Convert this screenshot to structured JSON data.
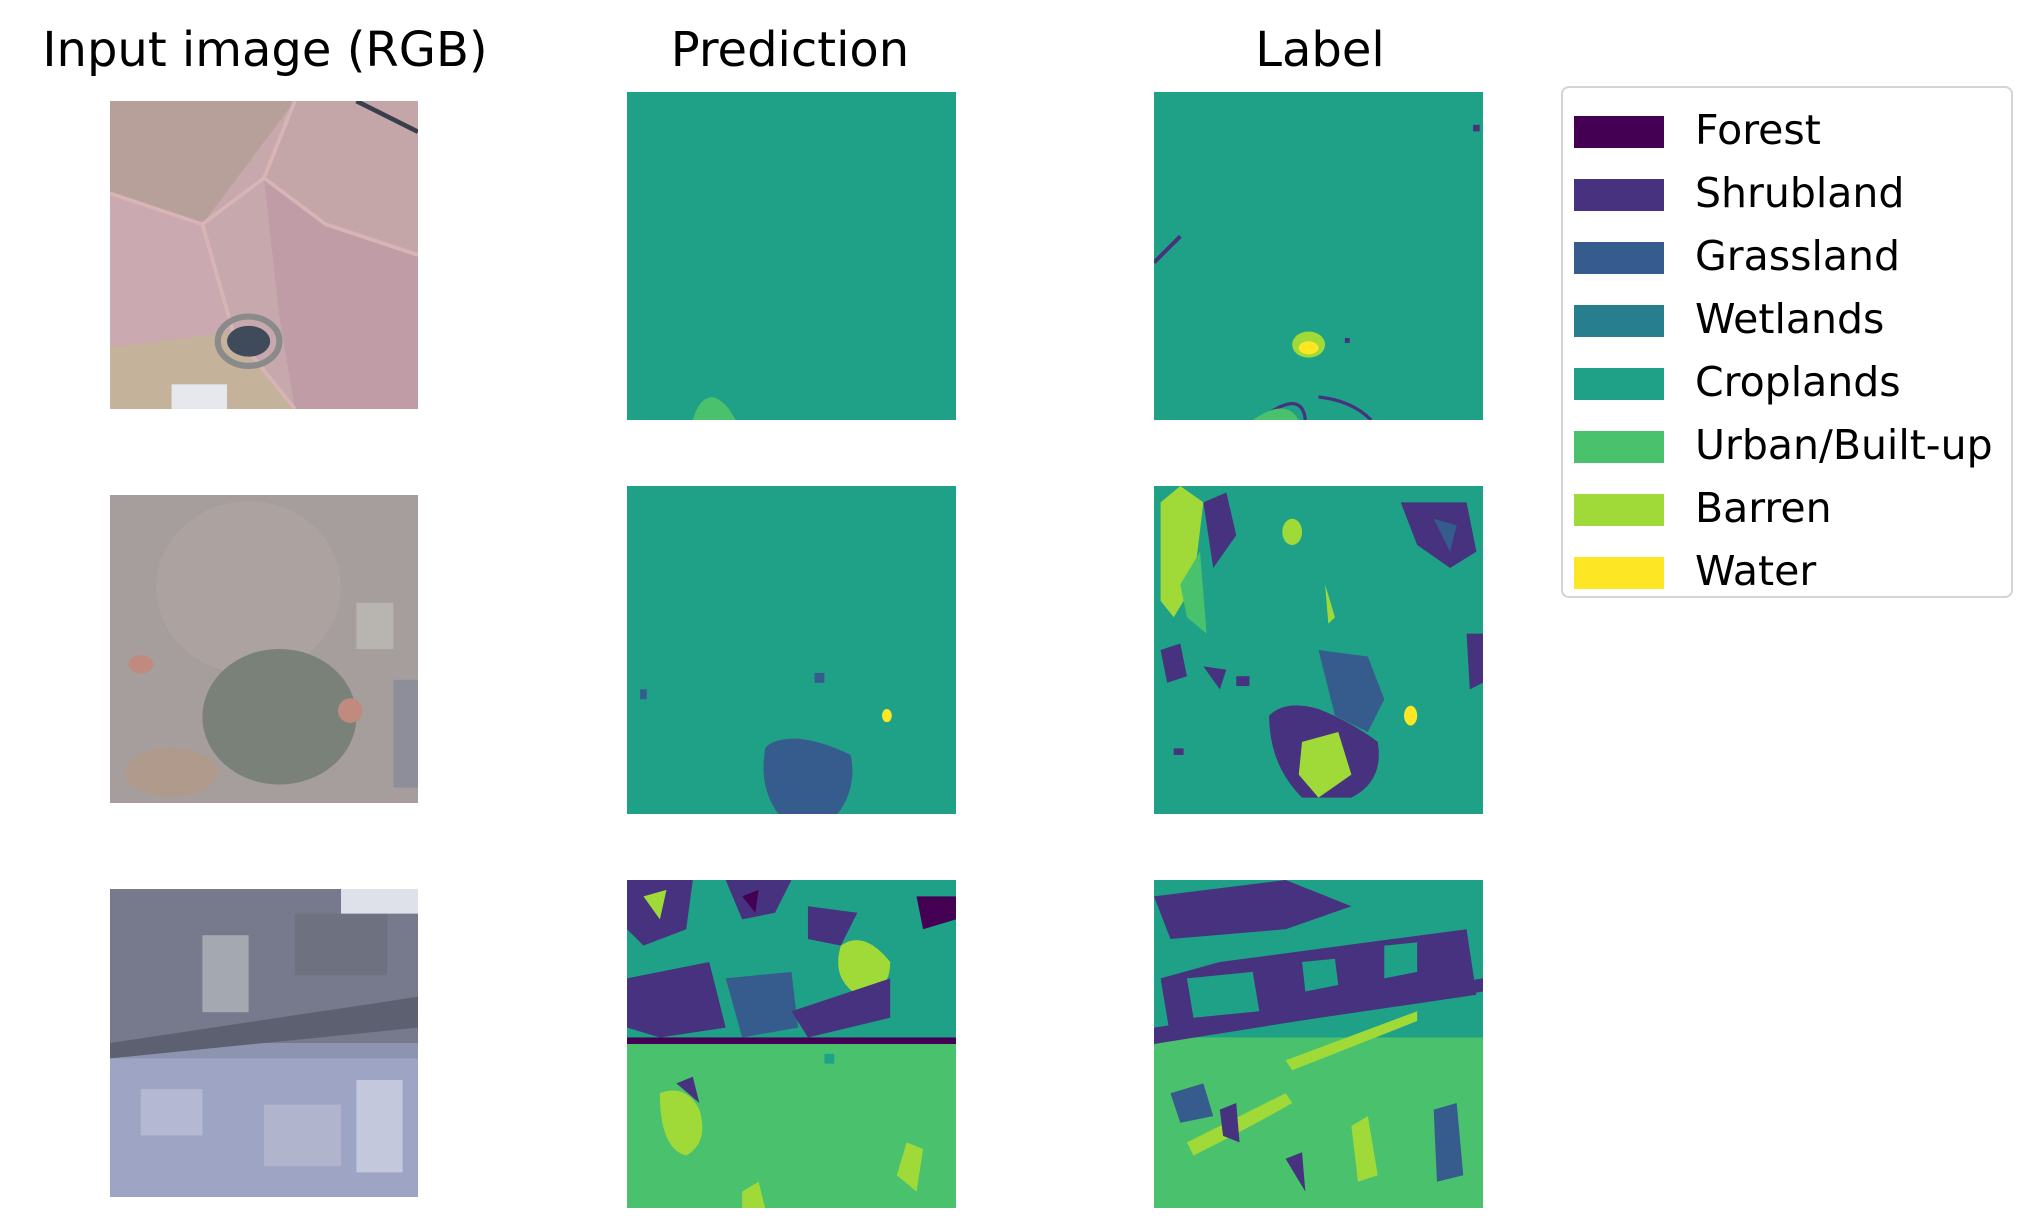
{
  "columns": {
    "input": "Input image (RGB)",
    "prediction": "Prediction",
    "label": "Label"
  },
  "legend": [
    {
      "name": "Forest",
      "color": "#440154"
    },
    {
      "name": "Shrubland",
      "color": "#46327e"
    },
    {
      "name": "Grassland",
      "color": "#365c8d"
    },
    {
      "name": "Wetlands",
      "color": "#277f8e"
    },
    {
      "name": "Croplands",
      "color": "#1fa187"
    },
    {
      "name": "Urban/Built-up",
      "color": "#4ac16d"
    },
    {
      "name": "Barren",
      "color": "#a0da39"
    },
    {
      "name": "Water",
      "color": "#fde725"
    }
  ],
  "rows": [
    {
      "input": "field-landscape-pinkish",
      "dominant_prediction": "Croplands",
      "dominant_label": "Croplands"
    },
    {
      "input": "field-landscape-grey",
      "dominant_prediction": "Croplands",
      "dominant_label": "Croplands"
    },
    {
      "input": "urban-landscape-blue",
      "dominant_prediction": "Urban/Built-up",
      "dominant_label": "Urban/Built-up"
    }
  ]
}
